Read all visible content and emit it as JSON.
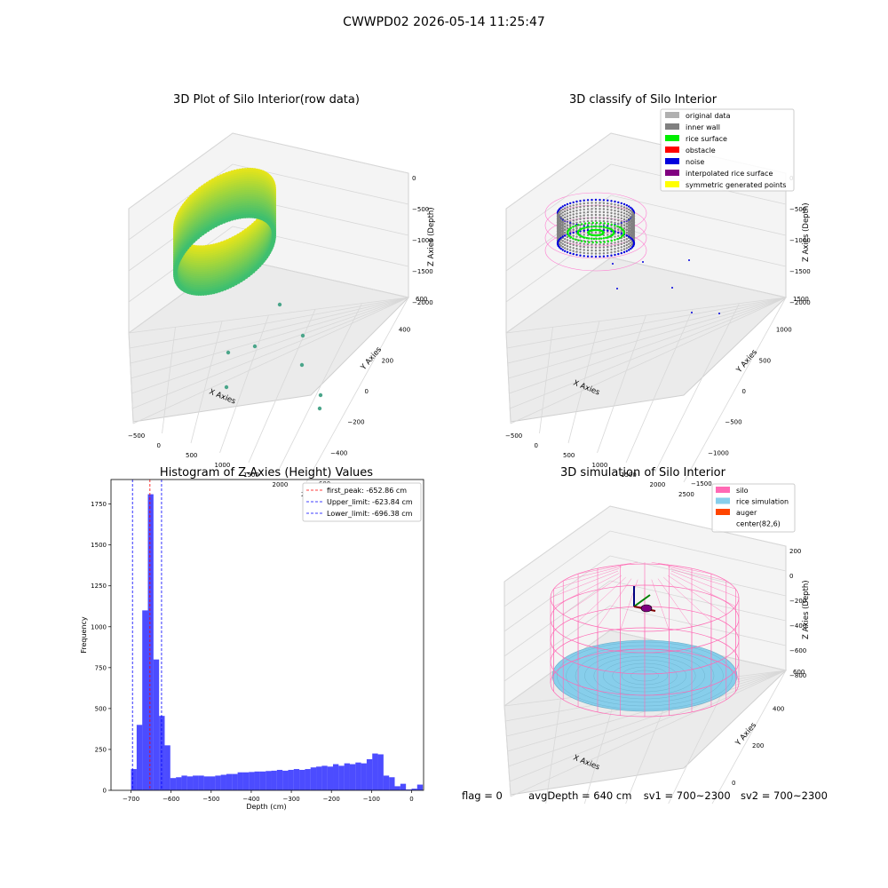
{
  "figure": {
    "suptitle": "CWWPD02 2026-05-14 11:25:47",
    "footer": {
      "flag": "flag = 0",
      "avg_depth": "avgDepth = 640 cm",
      "sv1": "sv1 = 700~2300",
      "sv2": "sv2 = 700~2300"
    }
  },
  "colors": {
    "raw_surface_dark": "#3fbf6f",
    "raw_surface_light": "#e6e51a",
    "original": "#b0b0b0",
    "inner_wall": "#808080",
    "rice_surface": "#00ee00",
    "obstacle": "#ff0000",
    "noise": "#0000dd",
    "interpolated": "#800080",
    "symmetric": "#ffff00",
    "silo": "#ff69b4",
    "rice_sim": "#87ceeb",
    "auger": "#ff4500",
    "hist_bar": "#0000ff",
    "peak_line": "#ff0000",
    "limit_line": "#0000ff"
  },
  "panels": {
    "raw": {
      "title": "3D Plot of Silo Interior(row data)",
      "xlabel": "X Axies",
      "ylabel": "Y Axies",
      "zlabel": "Z Axies (Depth)",
      "x_ticks": [
        "−500",
        "0",
        "500",
        "1000",
        "1500",
        "2000",
        "2500"
      ],
      "y_ticks": [
        "600",
        "400",
        "200",
        "0",
        "−200",
        "−400",
        "−600"
      ],
      "z_ticks": [
        "0",
        "−500",
        "−1000",
        "−1500",
        "−2000"
      ]
    },
    "classify": {
      "title": "3D classify of Silo Interior",
      "xlabel": "X Axies",
      "ylabel": "Y Axies",
      "zlabel": "Z Axies (Depth)",
      "x_ticks": [
        "−500",
        "0",
        "500",
        "1000",
        "1500",
        "2000",
        "2500"
      ],
      "y_ticks": [
        "1500",
        "1000",
        "500",
        "0",
        "−500",
        "−1000",
        "−1500"
      ],
      "z_ticks": [
        "0",
        "−500",
        "−1000",
        "−1500",
        "−2000"
      ],
      "legend": [
        {
          "label": "original data",
          "color": "#b0b0b0"
        },
        {
          "label": "inner wall",
          "color": "#808080"
        },
        {
          "label": "rice surface",
          "color": "#00ee00"
        },
        {
          "label": "obstacle",
          "color": "#ff0000"
        },
        {
          "label": "noise",
          "color": "#0000dd"
        },
        {
          "label": "interpolated rice surface",
          "color": "#800080"
        },
        {
          "label": "symmetric generated points",
          "color": "#ffff00"
        }
      ]
    },
    "simulation": {
      "title": "3D simulation of Silo Interior",
      "xlabel": "X Axies",
      "ylabel": "Y Axies",
      "zlabel": "Z Axies (Depth)",
      "x_ticks": [
        "−400",
        "−200",
        "0",
        "200",
        "400",
        "600"
      ],
      "y_ticks": [
        "600",
        "400",
        "200",
        "0",
        "−200",
        "−400"
      ],
      "z_ticks": [
        "200",
        "0",
        "−200",
        "−400",
        "−600",
        "−800"
      ],
      "legend": [
        {
          "label": "silo",
          "color": "#ff69b4"
        },
        {
          "label": "rice simulation",
          "color": "#87ceeb"
        },
        {
          "label": "auger",
          "color": "#ff4500"
        },
        {
          "label": "center(82,6)",
          "color": ""
        }
      ]
    }
  },
  "chart_data": {
    "type": "bar",
    "title": "Histogram of Z-Axies (Height) Values",
    "xlabel": "Depth (cm)",
    "ylabel": "Frequency",
    "xlim": [
      -750,
      30
    ],
    "ylim": [
      0,
      1900
    ],
    "x_ticks": [
      -700,
      -600,
      -500,
      -400,
      -300,
      -200,
      -100,
      0
    ],
    "x_tick_labels": [
      "−700",
      "−600",
      "−500",
      "−400",
      "−300",
      "−200",
      "−100",
      "0"
    ],
    "y_ticks": [
      0,
      250,
      500,
      750,
      1000,
      1250,
      1500,
      1750
    ],
    "bin_start": -700,
    "bin_width": 14,
    "values": [
      130,
      400,
      1100,
      1810,
      800,
      455,
      275,
      75,
      80,
      90,
      85,
      90,
      90,
      85,
      85,
      90,
      95,
      100,
      100,
      110,
      110,
      112,
      115,
      115,
      118,
      120,
      125,
      120,
      125,
      130,
      125,
      130,
      140,
      145,
      150,
      145,
      160,
      150,
      165,
      160,
      170,
      165,
      190,
      225,
      220,
      90,
      80,
      25,
      40,
      5,
      10,
      35
    ],
    "lines": [
      {
        "label": "first_peak: -652.86 cm",
        "x": -652.86,
        "style": "peak"
      },
      {
        "label": "Upper_limit: -623.84 cm",
        "x": -623.84,
        "style": "limit"
      },
      {
        "label": "Lower_limit: -696.38 cm",
        "x": -696.38,
        "style": "limit"
      }
    ],
    "legend_position": "upper right"
  }
}
